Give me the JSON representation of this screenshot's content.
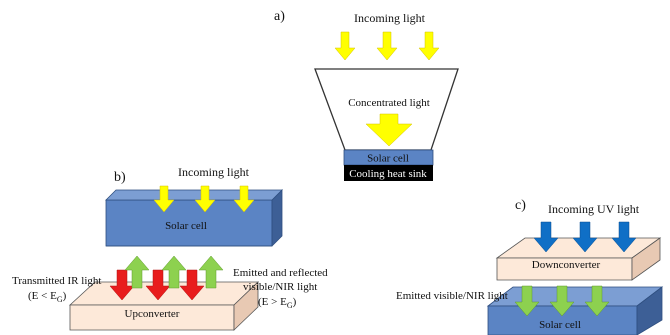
{
  "panel_a": {
    "label": "a)",
    "incoming": "Incoming light",
    "concentrated": "Concentrated light",
    "cell": "Solar cell",
    "sink": "Cooling heat sink"
  },
  "panel_b": {
    "label": "b)",
    "incoming": "Incoming light",
    "cell": "Solar cell",
    "transmitted_line1": "Transmitted IR light",
    "transmitted_line2": "(E < E",
    "transmitted_sub": "G",
    "transmitted_close": ")",
    "emitted_line1": "Emitted and reflected",
    "emitted_line2": "visible/NIR light",
    "emitted_line3": "(E > E",
    "emitted_sub": "G",
    "emitted_close": ")",
    "converter": "Upconverter"
  },
  "panel_c": {
    "label": "c)",
    "incoming": "Incoming UV light",
    "converter": "Downconverter",
    "emitted": "Emitted visible/NIR light",
    "cell": "Solar cell"
  },
  "colors": {
    "yellow": "#ffff00",
    "red": "#e81d1d",
    "green": "#8dd14f",
    "blue_arrow": "#0f6fc6",
    "cell_face": "#5b84c4",
    "cell_side": "#3d5f96",
    "converter_face": "#fde9d9",
    "converter_side": "#e8c9b3",
    "sink": "#000000"
  }
}
